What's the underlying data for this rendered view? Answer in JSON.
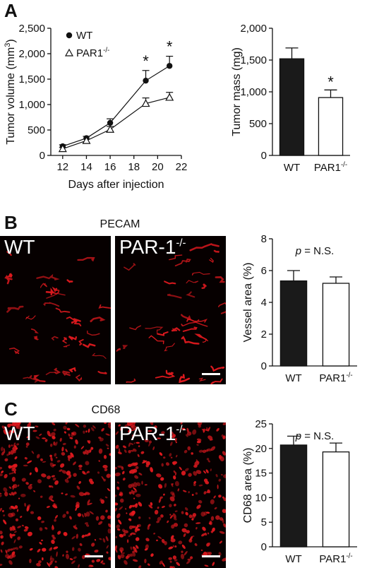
{
  "panels": {
    "a": {
      "letter": "A"
    },
    "b": {
      "letter": "B",
      "stain": "PECAM",
      "left_label": "WT",
      "right_label": "PAR-1",
      "right_sup": "-/-"
    },
    "c": {
      "letter": "C",
      "stain": "CD68",
      "left_label": "WT",
      "right_label": "PAR-1",
      "right_sup": "-/-"
    }
  },
  "colors": {
    "bar_wt": "#1a1a1a",
    "bar_par1": "#ffffff",
    "micro_bg": "#060000",
    "micro_signal": "#e0191e"
  },
  "chart_data": [
    {
      "id": "tumor-volume",
      "type": "line",
      "ylabel": "Tumor volume (mm",
      "ylabel_sup": "3",
      "ylabel_end": ")",
      "xlabel": "Days after injection",
      "xlim": [
        11,
        22
      ],
      "ylim": [
        0,
        2500
      ],
      "xticks": [
        12,
        14,
        16,
        18,
        20,
        22
      ],
      "yticks": [
        0,
        500,
        1000,
        1500,
        2000,
        2500
      ],
      "ytick_labels": [
        "0",
        "500",
        "1,000",
        "1,500",
        "2,000",
        "2,500"
      ],
      "legend_placement": "top-left",
      "series": [
        {
          "name": "WT",
          "marker": "filled-circle",
          "x": [
            12,
            14,
            16,
            19,
            21
          ],
          "values": [
            180,
            340,
            640,
            1470,
            1760
          ],
          "errors": [
            30,
            35,
            80,
            200,
            190
          ]
        },
        {
          "name": "PAR1",
          "name_sup": "-/-",
          "marker": "open-triangle",
          "x": [
            12,
            14,
            16,
            19,
            21
          ],
          "values": [
            130,
            290,
            510,
            1020,
            1140
          ],
          "errors": [
            25,
            30,
            60,
            110,
            100
          ]
        }
      ],
      "significance": [
        {
          "x": 19,
          "label": "*"
        },
        {
          "x": 21,
          "label": "*"
        }
      ]
    },
    {
      "id": "tumor-mass",
      "type": "bar",
      "ylabel": "Tumor mass (mg)",
      "ylim": [
        0,
        2000
      ],
      "yticks": [
        0,
        500,
        1000,
        1500,
        2000
      ],
      "ytick_labels": [
        "0",
        "500",
        "1,000",
        "1,500",
        "2,000"
      ],
      "categories": [
        "WT",
        "PAR1"
      ],
      "category_sups": [
        "",
        "-/-"
      ],
      "values": [
        1520,
        910
      ],
      "errors": [
        170,
        120
      ],
      "annotations": [
        {
          "category": "PAR1",
          "label": "*"
        }
      ]
    },
    {
      "id": "vessel-area",
      "type": "bar",
      "ylabel": "Vessel area (%)",
      "ylim": [
        0,
        8
      ],
      "yticks": [
        0,
        2,
        4,
        6,
        8
      ],
      "ytick_labels": [
        "0",
        "2",
        "4",
        "6",
        "8"
      ],
      "categories": [
        "WT",
        "PAR1"
      ],
      "category_sups": [
        "",
        "-/-"
      ],
      "values": [
        5.35,
        5.2
      ],
      "errors": [
        0.65,
        0.4
      ],
      "note_italic": "p",
      "note": " = N.S."
    },
    {
      "id": "cd68-area",
      "type": "bar",
      "ylabel": "CD68 area (%)",
      "ylim": [
        0,
        25
      ],
      "yticks": [
        0,
        5,
        10,
        15,
        20,
        25
      ],
      "ytick_labels": [
        "0",
        "5",
        "10",
        "15",
        "20",
        "25"
      ],
      "categories": [
        "WT",
        "PAR1"
      ],
      "category_sups": [
        "",
        "-/-"
      ],
      "values": [
        20.7,
        19.3
      ],
      "errors": [
        1.8,
        1.8
      ],
      "note_italic": "p",
      "note": " = N.S."
    }
  ]
}
